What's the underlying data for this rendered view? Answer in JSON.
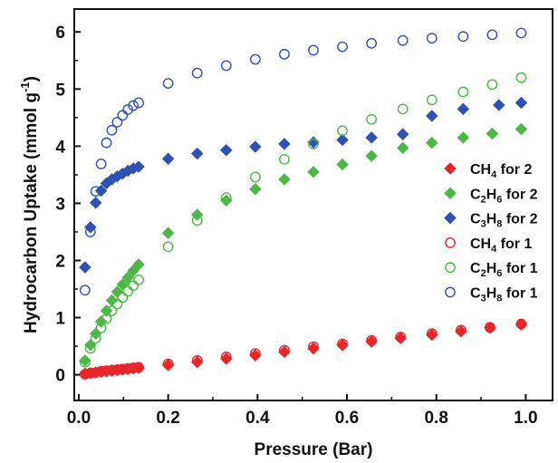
{
  "chart_data": {
    "type": "scatter",
    "xlabel": "Pressure (Bar)",
    "ylabel_main": "Hydrocarbon Uptake (mmol g",
    "ylabel_sup": "-1",
    "ylabel_close": ")",
    "xlim": [
      -0.01,
      1.06
    ],
    "ylim": [
      -0.45,
      6.4
    ],
    "x_ticks": [
      0.0,
      0.2,
      0.4,
      0.6,
      0.8,
      1.0
    ],
    "x_tick_labels": [
      "0.0",
      "0.2",
      "0.4",
      "0.6",
      "0.8",
      "1.0"
    ],
    "y_ticks": [
      0,
      1,
      2,
      3,
      4,
      5,
      6
    ],
    "y_tick_labels": [
      "0",
      "1",
      "2",
      "3",
      "4",
      "5",
      "6"
    ],
    "legend_position": "center-right",
    "series": [
      {
        "legend_base": "CH",
        "legend_sub": "4",
        "legend_suffix": " for ",
        "legend_num": "2",
        "marker": "diamond-filled",
        "color": "#e8262a",
        "points": [
          [
            0.014,
            0.02
          ],
          [
            0.026,
            0.03
          ],
          [
            0.038,
            0.04
          ],
          [
            0.05,
            0.05
          ],
          [
            0.062,
            0.06
          ],
          [
            0.074,
            0.07
          ],
          [
            0.086,
            0.08
          ],
          [
            0.098,
            0.09
          ],
          [
            0.11,
            0.1
          ],
          [
            0.122,
            0.11
          ],
          [
            0.134,
            0.12
          ],
          [
            0.2,
            0.17
          ],
          [
            0.265,
            0.22
          ],
          [
            0.33,
            0.28
          ],
          [
            0.395,
            0.34
          ],
          [
            0.46,
            0.4
          ],
          [
            0.525,
            0.46
          ],
          [
            0.59,
            0.52
          ],
          [
            0.655,
            0.58
          ],
          [
            0.72,
            0.64
          ],
          [
            0.79,
            0.7
          ],
          [
            0.855,
            0.76
          ],
          [
            0.92,
            0.82
          ],
          [
            0.99,
            0.88
          ]
        ]
      },
      {
        "legend_base": "C",
        "legend_sub": "2",
        "legend_mid": "H",
        "legend_sub2": "6",
        "legend_suffix": " for ",
        "legend_num": "2",
        "marker": "diamond-filled",
        "color": "#4db848",
        "points": [
          [
            0.014,
            0.25
          ],
          [
            0.026,
            0.52
          ],
          [
            0.038,
            0.72
          ],
          [
            0.05,
            0.93
          ],
          [
            0.062,
            1.12
          ],
          [
            0.074,
            1.3
          ],
          [
            0.086,
            1.45
          ],
          [
            0.098,
            1.58
          ],
          [
            0.11,
            1.7
          ],
          [
            0.122,
            1.82
          ],
          [
            0.134,
            1.93
          ],
          [
            0.2,
            2.48
          ],
          [
            0.265,
            2.8
          ],
          [
            0.33,
            3.05
          ],
          [
            0.395,
            3.25
          ],
          [
            0.46,
            3.42
          ],
          [
            0.525,
            3.55
          ],
          [
            0.59,
            3.68
          ],
          [
            0.655,
            3.83
          ],
          [
            0.725,
            3.97
          ],
          [
            0.79,
            4.06
          ],
          [
            0.86,
            4.15
          ],
          [
            0.925,
            4.22
          ],
          [
            0.99,
            4.3
          ]
        ]
      },
      {
        "legend_base": "C",
        "legend_sub": "3",
        "legend_mid": "H",
        "legend_sub2": "8",
        "legend_suffix": " for ",
        "legend_num": "2",
        "marker": "diamond-filled",
        "color": "#2e52b4",
        "points": [
          [
            0.014,
            1.88
          ],
          [
            0.026,
            2.58
          ],
          [
            0.038,
            3.01
          ],
          [
            0.05,
            3.22
          ],
          [
            0.062,
            3.35
          ],
          [
            0.074,
            3.42
          ],
          [
            0.086,
            3.47
          ],
          [
            0.098,
            3.52
          ],
          [
            0.11,
            3.57
          ],
          [
            0.122,
            3.61
          ],
          [
            0.134,
            3.64
          ],
          [
            0.2,
            3.78
          ],
          [
            0.265,
            3.87
          ],
          [
            0.33,
            3.93
          ],
          [
            0.395,
            3.99
          ],
          [
            0.46,
            4.04
          ],
          [
            0.525,
            4.07
          ],
          [
            0.59,
            4.11
          ],
          [
            0.655,
            4.15
          ],
          [
            0.725,
            4.21
          ],
          [
            0.79,
            4.53
          ],
          [
            0.86,
            4.65
          ],
          [
            0.94,
            4.72
          ],
          [
            0.99,
            4.76
          ]
        ]
      },
      {
        "legend_base": "CH",
        "legend_sub": "4",
        "legend_suffix": " for ",
        "legend_num": "1",
        "marker": "circle-open",
        "color": "#e8262a",
        "points": [
          [
            0.014,
            0.01
          ],
          [
            0.026,
            0.03
          ],
          [
            0.038,
            0.04
          ],
          [
            0.05,
            0.06
          ],
          [
            0.062,
            0.07
          ],
          [
            0.074,
            0.08
          ],
          [
            0.086,
            0.09
          ],
          [
            0.098,
            0.1
          ],
          [
            0.11,
            0.11
          ],
          [
            0.122,
            0.12
          ],
          [
            0.134,
            0.13
          ],
          [
            0.2,
            0.19
          ],
          [
            0.265,
            0.25
          ],
          [
            0.33,
            0.31
          ],
          [
            0.395,
            0.37
          ],
          [
            0.46,
            0.43
          ],
          [
            0.525,
            0.49
          ],
          [
            0.59,
            0.54
          ],
          [
            0.655,
            0.6
          ],
          [
            0.72,
            0.66
          ],
          [
            0.79,
            0.72
          ],
          [
            0.855,
            0.78
          ],
          [
            0.92,
            0.83
          ],
          [
            0.99,
            0.89
          ]
        ]
      },
      {
        "legend_base": "C",
        "legend_sub": "2",
        "legend_mid": "H",
        "legend_sub2": "6",
        "legend_suffix": " for ",
        "legend_num": "1",
        "marker": "circle-open",
        "color": "#4db848",
        "points": [
          [
            0.014,
            0.22
          ],
          [
            0.026,
            0.46
          ],
          [
            0.038,
            0.64
          ],
          [
            0.05,
            0.82
          ],
          [
            0.062,
            0.98
          ],
          [
            0.074,
            1.12
          ],
          [
            0.086,
            1.24
          ],
          [
            0.098,
            1.35
          ],
          [
            0.11,
            1.46
          ],
          [
            0.122,
            1.56
          ],
          [
            0.134,
            1.66
          ],
          [
            0.2,
            2.24
          ],
          [
            0.265,
            2.7
          ],
          [
            0.33,
            3.1
          ],
          [
            0.395,
            3.46
          ],
          [
            0.46,
            3.77
          ],
          [
            0.525,
            4.04
          ],
          [
            0.59,
            4.27
          ],
          [
            0.655,
            4.47
          ],
          [
            0.725,
            4.65
          ],
          [
            0.79,
            4.81
          ],
          [
            0.86,
            4.95
          ],
          [
            0.925,
            5.08
          ],
          [
            0.99,
            5.2
          ]
        ]
      },
      {
        "legend_base": "C",
        "legend_sub": "3",
        "legend_mid": "H",
        "legend_sub2": "8",
        "legend_suffix": " for ",
        "legend_num": "1",
        "marker": "circle-open",
        "color": "#2e52b4",
        "points": [
          [
            0.014,
            1.48
          ],
          [
            0.026,
            2.5
          ],
          [
            0.038,
            3.21
          ],
          [
            0.05,
            3.69
          ],
          [
            0.062,
            4.06
          ],
          [
            0.074,
            4.28
          ],
          [
            0.086,
            4.42
          ],
          [
            0.098,
            4.54
          ],
          [
            0.11,
            4.64
          ],
          [
            0.122,
            4.71
          ],
          [
            0.134,
            4.76
          ],
          [
            0.2,
            5.1
          ],
          [
            0.265,
            5.28
          ],
          [
            0.33,
            5.41
          ],
          [
            0.395,
            5.52
          ],
          [
            0.46,
            5.61
          ],
          [
            0.525,
            5.68
          ],
          [
            0.59,
            5.74
          ],
          [
            0.655,
            5.8
          ],
          [
            0.725,
            5.85
          ],
          [
            0.79,
            5.89
          ],
          [
            0.86,
            5.92
          ],
          [
            0.925,
            5.95
          ],
          [
            0.99,
            5.98
          ]
        ]
      }
    ]
  }
}
